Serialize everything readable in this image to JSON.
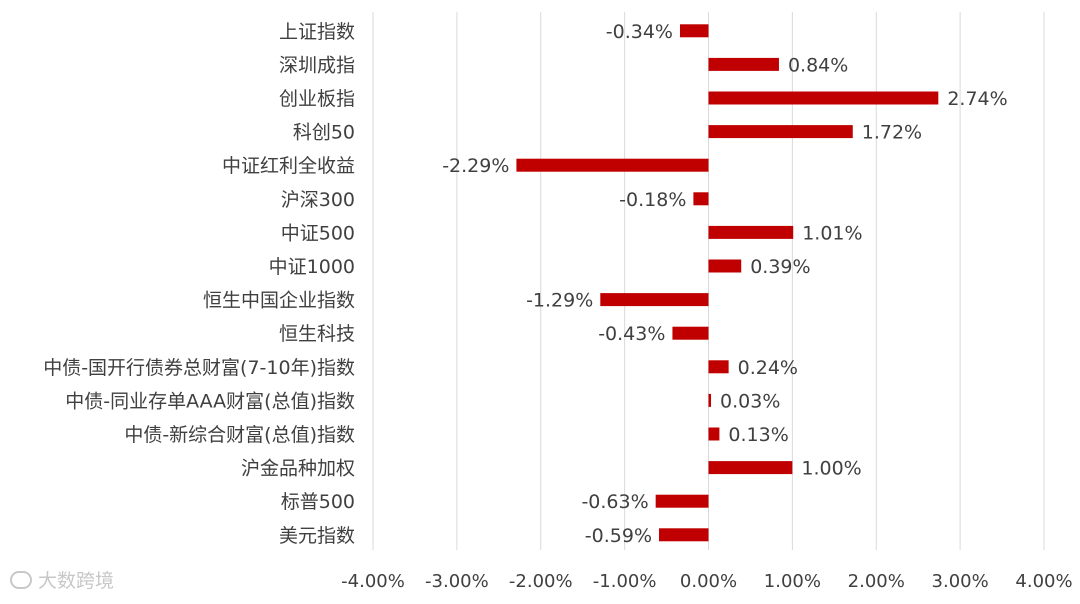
{
  "chart_data": {
    "type": "bar",
    "orientation": "horizontal",
    "categories": [
      "上证指数",
      "深圳成指",
      "创业板指",
      "科创50",
      "中证红利全收益",
      "沪深300",
      "中证500",
      "中证1000",
      "恒生中国企业指数",
      "恒生科技",
      "中债-国开行债券总财富(7-10年)指数",
      "中债-同业存单AAA财富(总值)指数",
      "中债-新综合财富(总值)指数",
      "沪金品种加权",
      "标普500",
      "美元指数"
    ],
    "values": [
      -0.34,
      0.84,
      2.74,
      1.72,
      -2.29,
      -0.18,
      1.01,
      0.39,
      -1.29,
      -0.43,
      0.24,
      0.03,
      0.13,
      1.0,
      -0.63,
      -0.59
    ],
    "value_labels": [
      "-0.34%",
      "0.84%",
      "2.74%",
      "1.72%",
      "-2.29%",
      "-0.18%",
      "1.01%",
      "0.39%",
      "-1.29%",
      "-0.43%",
      "0.24%",
      "0.03%",
      "0.13%",
      "1.00%",
      "-0.63%",
      "-0.59%"
    ],
    "xlim": [
      -4,
      4
    ],
    "x_ticks": [
      -4,
      -3,
      -2,
      -1,
      0,
      1,
      2,
      3,
      4
    ],
    "x_tick_labels": [
      "-4.00%",
      "-3.00%",
      "-2.00%",
      "-1.00%",
      "0.00%",
      "1.00%",
      "2.00%",
      "3.00%",
      "4.00%"
    ],
    "grid": "vertical",
    "bar_color": "#c00000"
  },
  "watermark": {
    "text": "大数跨境",
    "icon": "chat-bubble-icon"
  }
}
